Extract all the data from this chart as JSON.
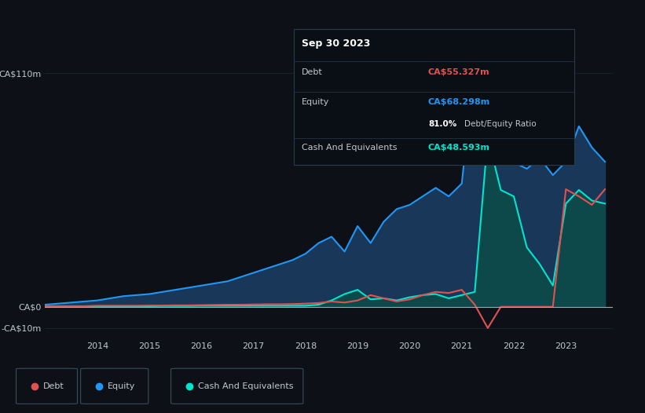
{
  "background_color": "#0d1117",
  "plot_bg_color": "#0d1117",
  "grid_color": "#1e2a38",
  "text_color": "#c0c8d0",
  "title_color": "#ffffff",
  "debt_color": "#e05252",
  "equity_color": "#2196f3",
  "cash_color": "#00e5cc",
  "equity_fill_color": "#1a3a5c",
  "cash_fill_color": "#0d4a4a",
  "tooltip_bg": "#0a0f16",
  "tooltip_border": "#2a3a4a",
  "tooltip_title": "Sep 30 2023",
  "tooltip_debt_label": "Debt",
  "tooltip_debt_value": "CA$55.327m",
  "tooltip_equity_label": "Equity",
  "tooltip_equity_value": "CA$68.298m",
  "tooltip_ratio": "81.0%",
  "tooltip_ratio_label": "Debt/Equity Ratio",
  "tooltip_cash_label": "Cash And Equivalents",
  "tooltip_cash_value": "CA$48.593m",
  "legend_items": [
    {
      "label": "Debt",
      "color": "#e05252"
    },
    {
      "label": "Equity",
      "color": "#2196f3"
    },
    {
      "label": "Cash And Equivalents",
      "color": "#00e5cc"
    }
  ]
}
